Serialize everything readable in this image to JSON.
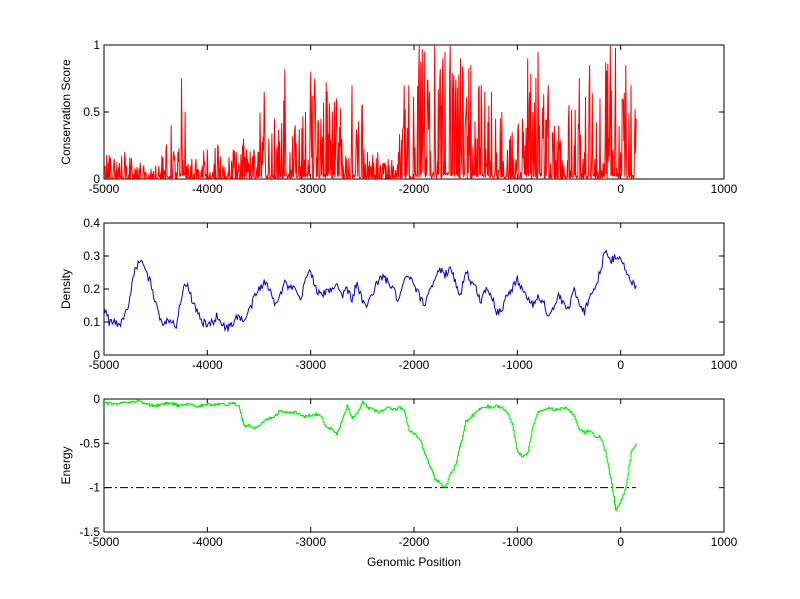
{
  "chart_data": [
    {
      "type": "line",
      "ylabel": "Conservation Score",
      "xlim": [
        -5000,
        1000
      ],
      "ylim": [
        0,
        1
      ],
      "xticks": [
        -5000,
        -4000,
        -3000,
        -2000,
        -1000,
        0,
        1000
      ],
      "yticks": [
        0,
        0.5,
        1
      ],
      "color": "#ff0000",
      "style": "spiky",
      "series": [
        {
          "x": [
            -4990,
            -4950,
            -4900,
            -4850,
            -4800,
            -4750,
            -4700,
            -4650,
            -4600,
            -4550,
            -4500,
            -4450,
            -4400,
            -4350,
            -4300,
            -4250,
            -4200,
            -4150,
            -4100,
            -4050,
            -4000,
            -3950,
            -3900,
            -3850,
            -3800,
            -3750,
            -3700,
            -3650,
            -3600,
            -3550,
            -3500,
            -3450,
            -3400,
            -3350,
            -3300,
            -3250,
            -3200,
            -3150,
            -3100,
            -3050,
            -3000,
            -2950,
            -2900,
            -2850,
            -2800,
            -2750,
            -2700,
            -2650,
            -2600,
            -2550,
            -2500,
            -2450,
            -2400,
            -2350,
            -2300,
            -2250,
            -2200,
            -2150,
            -2100,
            -2050,
            -2000,
            -1950,
            -1900,
            -1850,
            -1800,
            -1750,
            -1700,
            -1650,
            -1600,
            -1550,
            -1500,
            -1450,
            -1400,
            -1350,
            -1300,
            -1250,
            -1200,
            -1150,
            -1100,
            -1050,
            -1000,
            -950,
            -900,
            -850,
            -800,
            -750,
            -700,
            -650,
            -600,
            -550,
            -500,
            -450,
            -400,
            -350,
            -300,
            -250,
            -200,
            -150,
            -100,
            -50,
            0,
            50,
            100,
            150
          ],
          "y": [
            0.1,
            0.18,
            0.15,
            0.12,
            0.2,
            0.16,
            0.08,
            0.12,
            0.05,
            0.02,
            0.1,
            0.05,
            0.22,
            0.4,
            0.05,
            0.75,
            0.1,
            0.15,
            0.05,
            0.1,
            0.22,
            0.05,
            0.25,
            0.1,
            0.05,
            0.22,
            0.05,
            0.3,
            0.12,
            0.22,
            0.2,
            0.65,
            0.1,
            0.45,
            0.28,
            0.82,
            0.2,
            0.4,
            0.1,
            0.5,
            0.8,
            0.3,
            0.45,
            0.72,
            0.1,
            0.6,
            0.3,
            0.15,
            0.7,
            0.25,
            0.55,
            0.2,
            0.18,
            0.2,
            0.12,
            0.15,
            0.1,
            0.2,
            0.4,
            0.7,
            0.3,
            1,
            0.95,
            0.65,
            1,
            0.75,
            0.95,
            1,
            0.6,
            0.9,
            0.45,
            0.85,
            0.3,
            0.7,
            0.1,
            0.65,
            0.2,
            0.5,
            0.1,
            0.35,
            0.1,
            0.45,
            0.9,
            0.5,
            0.95,
            0.3,
            0.7,
            0.2,
            0.4,
            0.1,
            0.55,
            0.25,
            0.75,
            0.2,
            0.85,
            0.15,
            0.6,
            0.3,
            1,
            0.98,
            0.2,
            0.85,
            0.7,
            0.45
          ]
        }
      ]
    },
    {
      "type": "line",
      "ylabel": "Density",
      "xlim": [
        -5000,
        1000
      ],
      "ylim": [
        0,
        0.4
      ],
      "xticks": [
        -5000,
        -4000,
        -3000,
        -2000,
        -1000,
        0,
        1000
      ],
      "yticks": [
        0,
        0.1,
        0.2,
        0.3,
        0.4
      ],
      "color": "#0000cc",
      "style": "wiggly",
      "series": [
        {
          "x": [
            -5000,
            -4950,
            -4900,
            -4850,
            -4800,
            -4750,
            -4700,
            -4650,
            -4600,
            -4550,
            -4500,
            -4450,
            -4400,
            -4350,
            -4300,
            -4250,
            -4200,
            -4150,
            -4100,
            -4050,
            -4000,
            -3950,
            -3900,
            -3850,
            -3800,
            -3750,
            -3700,
            -3650,
            -3600,
            -3550,
            -3500,
            -3450,
            -3400,
            -3350,
            -3300,
            -3250,
            -3200,
            -3150,
            -3100,
            -3050,
            -3000,
            -2950,
            -2900,
            -2850,
            -2800,
            -2750,
            -2700,
            -2650,
            -2600,
            -2550,
            -2500,
            -2450,
            -2400,
            -2350,
            -2300,
            -2250,
            -2200,
            -2150,
            -2100,
            -2050,
            -2000,
            -1950,
            -1900,
            -1850,
            -1800,
            -1750,
            -1700,
            -1650,
            -1600,
            -1550,
            -1500,
            -1450,
            -1400,
            -1350,
            -1300,
            -1250,
            -1200,
            -1150,
            -1100,
            -1050,
            -1000,
            -950,
            -900,
            -850,
            -800,
            -750,
            -700,
            -650,
            -600,
            -550,
            -500,
            -450,
            -400,
            -350,
            -300,
            -250,
            -200,
            -150,
            -100,
            -50,
            0,
            50,
            100,
            150
          ],
          "y": [
            0.15,
            0.1,
            0.1,
            0.09,
            0.12,
            0.17,
            0.26,
            0.29,
            0.25,
            0.22,
            0.16,
            0.1,
            0.1,
            0.11,
            0.09,
            0.18,
            0.22,
            0.17,
            0.13,
            0.1,
            0.09,
            0.1,
            0.12,
            0.09,
            0.08,
            0.1,
            0.12,
            0.1,
            0.13,
            0.17,
            0.2,
            0.22,
            0.2,
            0.16,
            0.18,
            0.22,
            0.2,
            0.2,
            0.16,
            0.23,
            0.26,
            0.2,
            0.18,
            0.19,
            0.2,
            0.22,
            0.18,
            0.2,
            0.17,
            0.22,
            0.16,
            0.15,
            0.19,
            0.22,
            0.24,
            0.22,
            0.2,
            0.16,
            0.22,
            0.24,
            0.21,
            0.18,
            0.15,
            0.2,
            0.23,
            0.26,
            0.24,
            0.27,
            0.22,
            0.18,
            0.26,
            0.22,
            0.2,
            0.16,
            0.21,
            0.18,
            0.13,
            0.14,
            0.18,
            0.2,
            0.23,
            0.2,
            0.17,
            0.15,
            0.18,
            0.16,
            0.12,
            0.14,
            0.18,
            0.15,
            0.14,
            0.2,
            0.16,
            0.13,
            0.18,
            0.2,
            0.25,
            0.32,
            0.28,
            0.3,
            0.3,
            0.25,
            0.22,
            0.21
          ]
        }
      ]
    },
    {
      "type": "line",
      "ylabel": "Energy",
      "xlabel": "Genomic Position",
      "xlim": [
        -5000,
        1000
      ],
      "ylim": [
        -1.5,
        0
      ],
      "xticks": [
        -5000,
        -4000,
        -3000,
        -2000,
        -1000,
        0,
        1000
      ],
      "yticks": [
        -1.5,
        -1,
        -0.5,
        0
      ],
      "color": "#00ee00",
      "style": "steps",
      "threshold": -1,
      "threshold_xrange": [
        -5000,
        150
      ],
      "series": [
        {
          "x": [
            -5000,
            -4950,
            -4900,
            -4850,
            -4800,
            -4750,
            -4700,
            -4650,
            -4600,
            -4550,
            -4500,
            -4450,
            -4400,
            -4350,
            -4300,
            -4250,
            -4200,
            -4150,
            -4100,
            -4050,
            -4000,
            -3950,
            -3900,
            -3850,
            -3800,
            -3750,
            -3700,
            -3650,
            -3600,
            -3550,
            -3500,
            -3450,
            -3400,
            -3350,
            -3300,
            -3250,
            -3200,
            -3150,
            -3100,
            -3050,
            -3000,
            -2950,
            -2900,
            -2850,
            -2800,
            -2750,
            -2700,
            -2650,
            -2600,
            -2550,
            -2500,
            -2450,
            -2400,
            -2350,
            -2300,
            -2250,
            -2200,
            -2150,
            -2100,
            -2050,
            -2000,
            -1950,
            -1900,
            -1850,
            -1800,
            -1750,
            -1700,
            -1650,
            -1600,
            -1550,
            -1500,
            -1450,
            -1400,
            -1350,
            -1300,
            -1250,
            -1200,
            -1150,
            -1100,
            -1050,
            -1000,
            -950,
            -900,
            -850,
            -800,
            -750,
            -700,
            -650,
            -600,
            -550,
            -500,
            -450,
            -400,
            -350,
            -300,
            -250,
            -200,
            -150,
            -100,
            -50,
            0,
            50,
            100,
            150
          ],
          "y": [
            -0.05,
            -0.05,
            -0.06,
            -0.05,
            -0.03,
            -0.04,
            -0.02,
            -0.03,
            -0.06,
            -0.07,
            -0.08,
            -0.06,
            -0.05,
            -0.05,
            -0.07,
            -0.07,
            -0.06,
            -0.07,
            -0.08,
            -0.07,
            -0.06,
            -0.07,
            -0.05,
            -0.06,
            -0.06,
            -0.05,
            -0.07,
            -0.3,
            -0.3,
            -0.33,
            -0.3,
            -0.25,
            -0.22,
            -0.2,
            -0.13,
            -0.15,
            -0.16,
            -0.15,
            -0.18,
            -0.2,
            -0.18,
            -0.17,
            -0.2,
            -0.33,
            -0.33,
            -0.4,
            -0.25,
            -0.08,
            -0.22,
            -0.15,
            -0.02,
            -0.1,
            -0.12,
            -0.15,
            -0.12,
            -0.1,
            -0.12,
            -0.1,
            -0.12,
            -0.35,
            -0.4,
            -0.45,
            -0.6,
            -0.75,
            -0.9,
            -0.95,
            -1,
            -0.85,
            -0.75,
            -0.5,
            -0.25,
            -0.2,
            -0.15,
            -0.1,
            -0.08,
            -0.1,
            -0.08,
            -0.1,
            -0.15,
            -0.3,
            -0.6,
            -0.65,
            -0.6,
            -0.3,
            -0.15,
            -0.12,
            -0.1,
            -0.12,
            -0.12,
            -0.1,
            -0.12,
            -0.2,
            -0.35,
            -0.38,
            -0.35,
            -0.42,
            -0.42,
            -0.6,
            -0.9,
            -1.25,
            -1.15,
            -1,
            -0.6,
            -0.5
          ]
        }
      ]
    }
  ]
}
